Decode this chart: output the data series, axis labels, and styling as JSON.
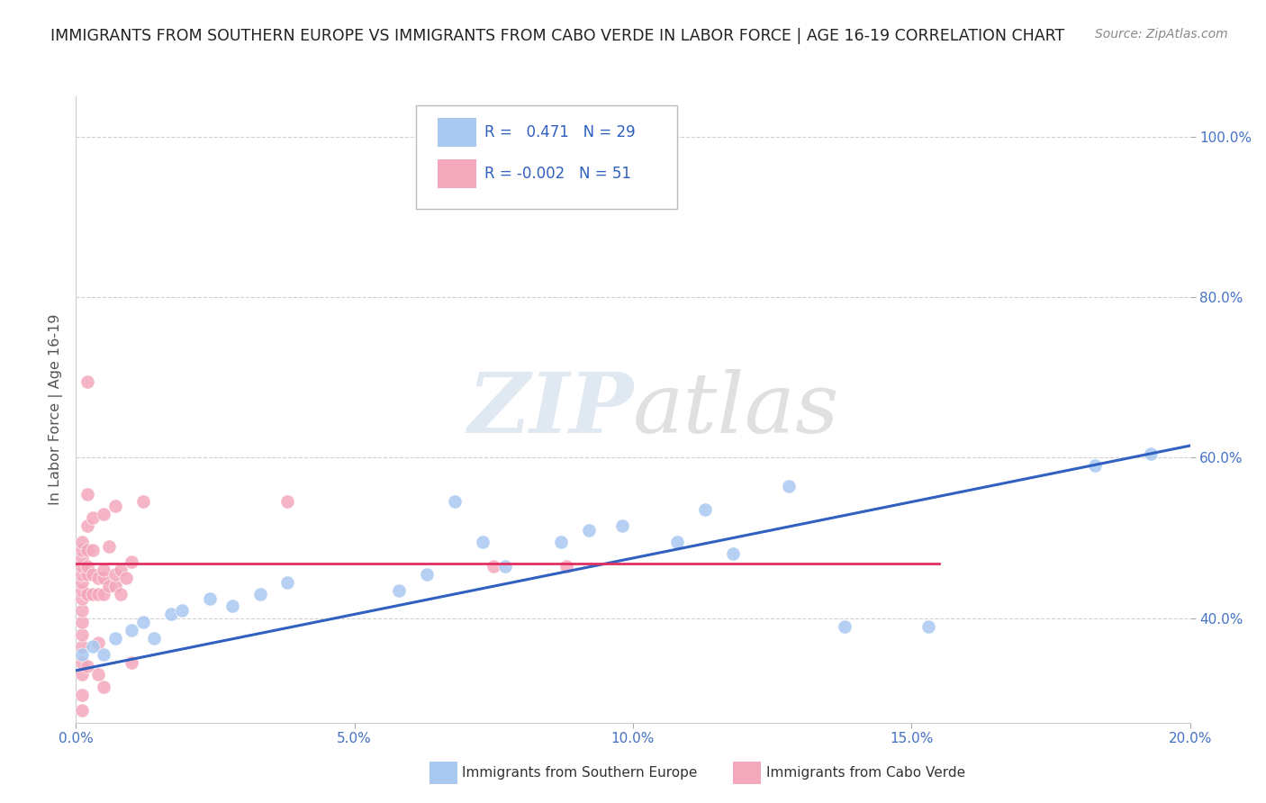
{
  "title": "IMMIGRANTS FROM SOUTHERN EUROPE VS IMMIGRANTS FROM CABO VERDE IN LABOR FORCE | AGE 16-19 CORRELATION CHART",
  "source": "Source: ZipAtlas.com",
  "xlabel_blue": "Immigrants from Southern Europe",
  "xlabel_pink": "Immigrants from Cabo Verde",
  "ylabel": "In Labor Force | Age 16-19",
  "legend_blue_r": "0.471",
  "legend_blue_n": "29",
  "legend_pink_r": "-0.002",
  "legend_pink_n": "51",
  "xlim": [
    0.0,
    0.2
  ],
  "ylim": [
    0.27,
    1.05
  ],
  "yticks": [
    0.4,
    0.6,
    0.8,
    1.0
  ],
  "ytick_labels": [
    "40.0%",
    "60.0%",
    "80.0%",
    "100.0%"
  ],
  "xticks": [
    0.0,
    0.05,
    0.1,
    0.15,
    0.2
  ],
  "xtick_labels": [
    "0.0%",
    "5.0%",
    "10.0%",
    "15.0%",
    "20.0%"
  ],
  "watermark_zip": "ZIP",
  "watermark_atlas": "atlas",
  "blue_color": "#A8C8F0",
  "pink_color": "#F4A8BC",
  "blue_line_color": "#3060C0",
  "pink_line_color": "#E03060",
  "background_color": "#FFFFFF",
  "grid_color": "#CCCCCC",
  "title_color": "#222222",
  "tick_color": "#4472C4",
  "ylabel_color": "#555555",
  "blue_scatter": [
    [
      0.001,
      0.355
    ],
    [
      0.003,
      0.365
    ],
    [
      0.005,
      0.355
    ],
    [
      0.007,
      0.375
    ],
    [
      0.01,
      0.385
    ],
    [
      0.012,
      0.395
    ],
    [
      0.014,
      0.375
    ],
    [
      0.017,
      0.405
    ],
    [
      0.019,
      0.41
    ],
    [
      0.024,
      0.425
    ],
    [
      0.028,
      0.415
    ],
    [
      0.033,
      0.43
    ],
    [
      0.038,
      0.445
    ],
    [
      0.058,
      0.435
    ],
    [
      0.063,
      0.455
    ],
    [
      0.068,
      0.545
    ],
    [
      0.073,
      0.495
    ],
    [
      0.077,
      0.465
    ],
    [
      0.087,
      0.495
    ],
    [
      0.092,
      0.51
    ],
    [
      0.098,
      0.515
    ],
    [
      0.108,
      0.495
    ],
    [
      0.113,
      0.535
    ],
    [
      0.118,
      0.48
    ],
    [
      0.128,
      0.565
    ],
    [
      0.138,
      0.39
    ],
    [
      0.153,
      0.39
    ],
    [
      0.183,
      0.59
    ],
    [
      0.193,
      0.605
    ]
  ],
  "pink_scatter": [
    [
      0.001,
      0.285
    ],
    [
      0.001,
      0.305
    ],
    [
      0.001,
      0.33
    ],
    [
      0.001,
      0.345
    ],
    [
      0.001,
      0.365
    ],
    [
      0.001,
      0.38
    ],
    [
      0.001,
      0.395
    ],
    [
      0.001,
      0.41
    ],
    [
      0.001,
      0.425
    ],
    [
      0.001,
      0.435
    ],
    [
      0.001,
      0.445
    ],
    [
      0.001,
      0.455
    ],
    [
      0.001,
      0.465
    ],
    [
      0.001,
      0.475
    ],
    [
      0.001,
      0.485
    ],
    [
      0.001,
      0.495
    ],
    [
      0.002,
      0.34
    ],
    [
      0.002,
      0.43
    ],
    [
      0.002,
      0.455
    ],
    [
      0.002,
      0.465
    ],
    [
      0.002,
      0.485
    ],
    [
      0.002,
      0.515
    ],
    [
      0.002,
      0.555
    ],
    [
      0.002,
      0.695
    ],
    [
      0.003,
      0.43
    ],
    [
      0.003,
      0.455
    ],
    [
      0.003,
      0.485
    ],
    [
      0.003,
      0.525
    ],
    [
      0.004,
      0.33
    ],
    [
      0.004,
      0.37
    ],
    [
      0.004,
      0.43
    ],
    [
      0.004,
      0.45
    ],
    [
      0.005,
      0.315
    ],
    [
      0.005,
      0.43
    ],
    [
      0.005,
      0.45
    ],
    [
      0.005,
      0.46
    ],
    [
      0.005,
      0.53
    ],
    [
      0.006,
      0.44
    ],
    [
      0.006,
      0.49
    ],
    [
      0.007,
      0.44
    ],
    [
      0.007,
      0.455
    ],
    [
      0.007,
      0.54
    ],
    [
      0.008,
      0.43
    ],
    [
      0.008,
      0.46
    ],
    [
      0.009,
      0.45
    ],
    [
      0.01,
      0.345
    ],
    [
      0.01,
      0.47
    ],
    [
      0.012,
      0.545
    ],
    [
      0.038,
      0.545
    ],
    [
      0.075,
      0.465
    ],
    [
      0.088,
      0.465
    ]
  ],
  "blue_line_x": [
    0.0,
    0.2
  ],
  "blue_line_y": [
    0.335,
    0.615
  ],
  "pink_line_x": [
    0.0,
    0.155
  ],
  "pink_line_y": [
    0.468,
    0.468
  ]
}
